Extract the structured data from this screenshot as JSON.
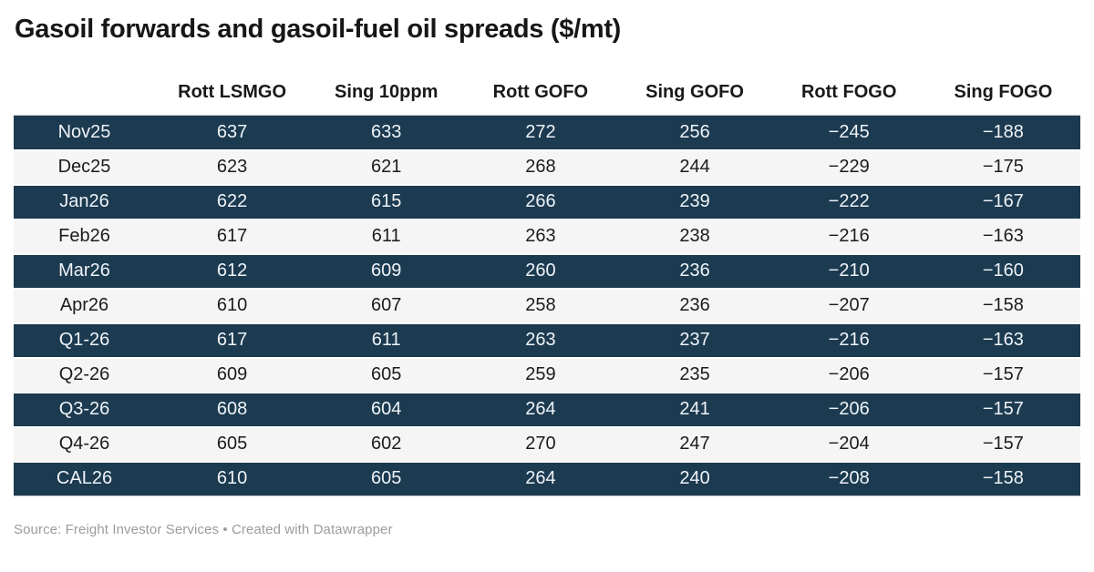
{
  "title": "Gasoil forwards and gasoil-fuel oil spreads ($/mt)",
  "footer": {
    "text": "Source: Freight Investor Services • Created with Datawrapper"
  },
  "colors": {
    "dark_row_bg": "#1c3a50",
    "dark_row_text": "#eef3f7",
    "light_row_bg": "#f5f5f6",
    "light_row_text": "#1c1c1c",
    "header_text": "#191919",
    "footer_text": "#9c9c9c",
    "divider": "#c9c9c9"
  },
  "chart_data": {
    "type": "table",
    "title": "Gasoil forwards and gasoil-fuel oil spreads ($/mt)",
    "columns": [
      "",
      "Rott LSMGO",
      "Sing 10ppm",
      "Rott GOFO",
      "Sing GOFO",
      "Rott FOGO",
      "Sing FOGO"
    ],
    "rows": [
      {
        "label": "Nov25",
        "values": [
          "637",
          "633",
          "272",
          "256",
          "−245",
          "−188"
        ]
      },
      {
        "label": "Dec25",
        "values": [
          "623",
          "621",
          "268",
          "244",
          "−229",
          "−175"
        ]
      },
      {
        "label": "Jan26",
        "values": [
          "622",
          "615",
          "266",
          "239",
          "−222",
          "−167"
        ]
      },
      {
        "label": "Feb26",
        "values": [
          "617",
          "611",
          "263",
          "238",
          "−216",
          "−163"
        ]
      },
      {
        "label": "Mar26",
        "values": [
          "612",
          "609",
          "260",
          "236",
          "−210",
          "−160"
        ]
      },
      {
        "label": "Apr26",
        "values": [
          "610",
          "607",
          "258",
          "236",
          "−207",
          "−158"
        ]
      },
      {
        "label": "Q1-26",
        "values": [
          "617",
          "611",
          "263",
          "237",
          "−216",
          "−163"
        ]
      },
      {
        "label": "Q2-26",
        "values": [
          "609",
          "605",
          "259",
          "235",
          "−206",
          "−157"
        ]
      },
      {
        "label": "Q3-26",
        "values": [
          "608",
          "604",
          "264",
          "241",
          "−206",
          "−157"
        ]
      },
      {
        "label": "Q4-26",
        "values": [
          "605",
          "602",
          "270",
          "247",
          "−204",
          "−157"
        ]
      },
      {
        "label": "CAL26",
        "values": [
          "610",
          "605",
          "264",
          "240",
          "−208",
          "−158"
        ]
      }
    ],
    "layout": {
      "row_striping": "alternating dark navy / light gray starting dark",
      "grid": "off",
      "value_alignment": "center"
    }
  }
}
